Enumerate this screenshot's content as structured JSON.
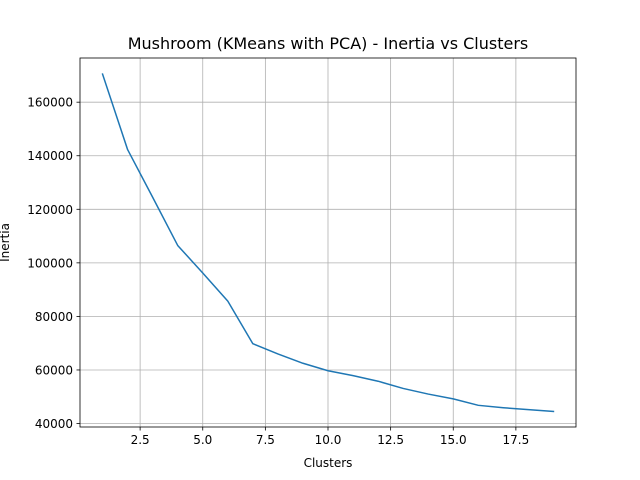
{
  "chart_data": {
    "type": "line",
    "title": "Mushroom (KMeans with PCA) - Inertia vs Clusters",
    "xlabel": "Clusters",
    "ylabel": "Inertia",
    "xlim": [
      0.1,
      19.9
    ],
    "ylim": [
      38700,
      176500
    ],
    "xticks": [
      2.5,
      5.0,
      7.5,
      10.0,
      12.5,
      15.0,
      17.5
    ],
    "xtick_labels": [
      "2.5",
      "5.0",
      "7.5",
      "10.0",
      "12.5",
      "15.0",
      "17.5"
    ],
    "yticks": [
      40000,
      60000,
      80000,
      100000,
      120000,
      140000,
      160000
    ],
    "ytick_labels": [
      "40000",
      "60000",
      "80000",
      "100000",
      "120000",
      "140000",
      "160000"
    ],
    "grid": true,
    "color": "#1f77b4",
    "x": [
      1,
      2,
      3,
      4,
      5,
      6,
      7,
      8,
      9,
      10,
      11,
      12,
      13,
      14,
      15,
      16,
      17,
      18,
      19
    ],
    "y": [
      170500,
      142300,
      124500,
      106500,
      96200,
      85700,
      69800,
      66000,
      62500,
      59700,
      57900,
      55800,
      53100,
      51000,
      49200,
      46800,
      45900,
      45200,
      44500
    ]
  }
}
